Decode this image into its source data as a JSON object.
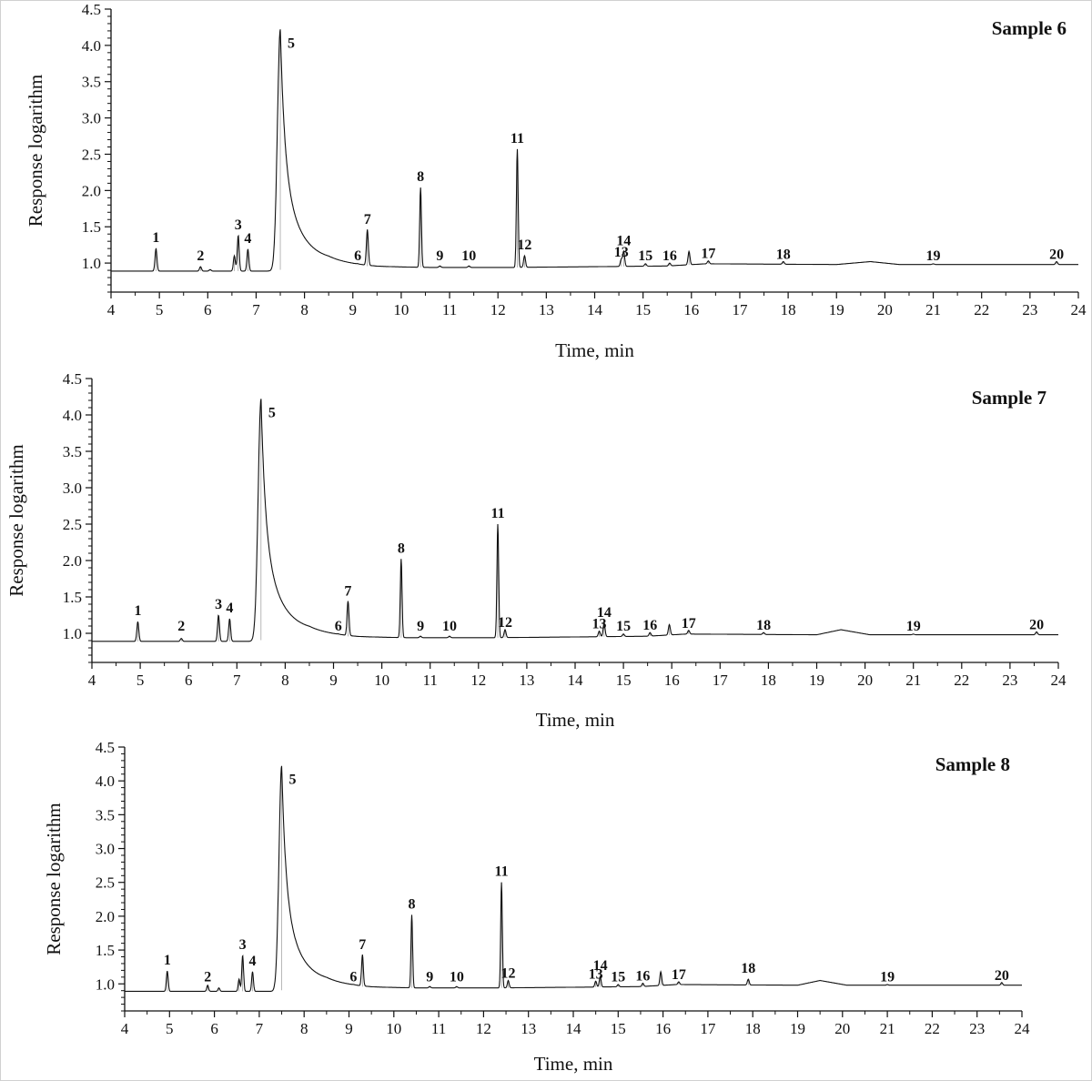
{
  "chart_data": [
    {
      "type": "line",
      "title": "Sample 6",
      "xlabel": "Time, min",
      "ylabel": "Response logarithm",
      "xlim": [
        4,
        24
      ],
      "ylim": [
        0.6,
        4.5
      ],
      "xticks": [
        "4",
        "5",
        "6",
        "7",
        "8",
        "9",
        "10",
        "11",
        "12",
        "13",
        "14",
        "15",
        "16",
        "17",
        "18",
        "19",
        "20",
        "21",
        "22",
        "23",
        "24"
      ],
      "yticks": [
        "1.0",
        "1.5",
        "2.0",
        "2.5",
        "3.0",
        "3.5",
        "4.0",
        "4.5"
      ],
      "baseline": [
        [
          4.0,
          0.89
        ],
        [
          7.3,
          0.89
        ],
        [
          8.5,
          0.99
        ],
        [
          9.5,
          0.95
        ],
        [
          10.5,
          0.94
        ],
        [
          12.3,
          0.94
        ],
        [
          14.0,
          0.95
        ],
        [
          15.5,
          0.96
        ],
        [
          16.3,
          0.99
        ],
        [
          19.0,
          0.98
        ],
        [
          19.7,
          1.02
        ],
        [
          20.3,
          0.98
        ],
        [
          24.0,
          0.98
        ]
      ],
      "peaks": [
        {
          "label": "1",
          "x": 4.93,
          "y": 1.2
        },
        {
          "label": "2",
          "x": 5.85,
          "y": 0.95
        },
        {
          "label": "",
          "x": 6.05,
          "y": 0.91
        },
        {
          "label": "",
          "x": 6.55,
          "y": 1.1
        },
        {
          "label": "3",
          "x": 6.63,
          "y": 1.38
        },
        {
          "label": "4",
          "x": 6.83,
          "y": 1.19
        },
        {
          "label": "5",
          "x": 7.5,
          "y": 4.22
        },
        {
          "label": "6",
          "x": 9.1,
          "y": 0.97
        },
        {
          "label": "7",
          "x": 9.3,
          "y": 1.45
        },
        {
          "label": "8",
          "x": 10.4,
          "y": 2.04
        },
        {
          "label": "9",
          "x": 10.8,
          "y": 0.96
        },
        {
          "label": "10",
          "x": 11.4,
          "y": 0.96
        },
        {
          "label": "11",
          "x": 12.4,
          "y": 2.57
        },
        {
          "label": "12",
          "x": 12.55,
          "y": 1.1
        },
        {
          "label": "13",
          "x": 14.55,
          "y": 1.05
        },
        {
          "label": "14",
          "x": 14.6,
          "y": 1.16
        },
        {
          "label": "15",
          "x": 15.05,
          "y": 0.99
        },
        {
          "label": "16",
          "x": 15.55,
          "y": 1.0
        },
        {
          "label": "",
          "x": 15.95,
          "y": 1.16
        },
        {
          "label": "17",
          "x": 16.35,
          "y": 1.03
        },
        {
          "label": "18",
          "x": 17.9,
          "y": 1.02
        },
        {
          "label": "19",
          "x": 21.0,
          "y": 0.99
        },
        {
          "label": "20",
          "x": 23.55,
          "y": 1.02
        }
      ]
    },
    {
      "type": "line",
      "title": "Sample 7",
      "xlabel": "Time, min",
      "ylabel": "Response logarithm",
      "xlim": [
        4,
        24
      ],
      "ylim": [
        0.6,
        4.5
      ],
      "xticks": [
        "4",
        "5",
        "6",
        "7",
        "8",
        "9",
        "10",
        "11",
        "12",
        "13",
        "14",
        "15",
        "16",
        "17",
        "18",
        "19",
        "20",
        "21",
        "22",
        "23",
        "24"
      ],
      "yticks": [
        "1.0",
        "1.5",
        "2.0",
        "2.5",
        "3.0",
        "3.5",
        "4.0",
        "4.5"
      ],
      "baseline": [
        [
          4.0,
          0.89
        ],
        [
          7.3,
          0.89
        ],
        [
          8.5,
          0.99
        ],
        [
          9.5,
          0.95
        ],
        [
          10.5,
          0.94
        ],
        [
          12.3,
          0.94
        ],
        [
          14.0,
          0.95
        ],
        [
          15.5,
          0.96
        ],
        [
          16.3,
          0.99
        ],
        [
          19.0,
          0.98
        ],
        [
          19.5,
          1.05
        ],
        [
          20.1,
          0.98
        ],
        [
          24.0,
          0.98
        ]
      ],
      "peaks": [
        {
          "label": "1",
          "x": 4.95,
          "y": 1.16
        },
        {
          "label": "2",
          "x": 5.85,
          "y": 0.93
        },
        {
          "label": "3",
          "x": 6.62,
          "y": 1.25
        },
        {
          "label": "4",
          "x": 6.85,
          "y": 1.2
        },
        {
          "label": "5",
          "x": 7.5,
          "y": 4.22
        },
        {
          "label": "6",
          "x": 9.1,
          "y": 0.97
        },
        {
          "label": "7",
          "x": 9.3,
          "y": 1.43
        },
        {
          "label": "8",
          "x": 10.4,
          "y": 2.02
        },
        {
          "label": "9",
          "x": 10.8,
          "y": 0.96
        },
        {
          "label": "10",
          "x": 11.4,
          "y": 0.96
        },
        {
          "label": "11",
          "x": 12.4,
          "y": 2.5
        },
        {
          "label": "12",
          "x": 12.55,
          "y": 1.05
        },
        {
          "label": "13",
          "x": 14.5,
          "y": 1.03
        },
        {
          "label": "14",
          "x": 14.6,
          "y": 1.14
        },
        {
          "label": "15",
          "x": 15.0,
          "y": 0.99
        },
        {
          "label": "16",
          "x": 15.55,
          "y": 1.01
        },
        {
          "label": "",
          "x": 15.95,
          "y": 1.12
        },
        {
          "label": "17",
          "x": 16.35,
          "y": 1.04
        },
        {
          "label": "18",
          "x": 17.9,
          "y": 1.01
        },
        {
          "label": "19",
          "x": 21.0,
          "y": 0.99
        },
        {
          "label": "20",
          "x": 23.55,
          "y": 1.02
        }
      ]
    },
    {
      "type": "line",
      "title": "Sample 8",
      "xlabel": "Time, min",
      "ylabel": "Response logarithm",
      "xlim": [
        4,
        24
      ],
      "ylim": [
        0.6,
        4.5
      ],
      "xticks": [
        "4",
        "5",
        "6",
        "7",
        "8",
        "9",
        "10",
        "11",
        "12",
        "13",
        "14",
        "15",
        "16",
        "17",
        "18",
        "19",
        "20",
        "21",
        "22",
        "23",
        "24"
      ],
      "yticks": [
        "1.0",
        "1.5",
        "2.0",
        "2.5",
        "3.0",
        "3.5",
        "4.0",
        "4.5"
      ],
      "baseline": [
        [
          4.0,
          0.89
        ],
        [
          7.3,
          0.89
        ],
        [
          8.5,
          0.99
        ],
        [
          9.5,
          0.95
        ],
        [
          10.5,
          0.94
        ],
        [
          12.3,
          0.94
        ],
        [
          14.0,
          0.95
        ],
        [
          15.5,
          0.96
        ],
        [
          16.3,
          0.99
        ],
        [
          19.0,
          0.98
        ],
        [
          19.5,
          1.05
        ],
        [
          20.1,
          0.98
        ],
        [
          24.0,
          0.98
        ]
      ],
      "peaks": [
        {
          "label": "1",
          "x": 4.95,
          "y": 1.19
        },
        {
          "label": "2",
          "x": 5.85,
          "y": 0.98
        },
        {
          "label": "",
          "x": 6.1,
          "y": 0.94
        },
        {
          "label": "",
          "x": 6.55,
          "y": 1.07
        },
        {
          "label": "3",
          "x": 6.63,
          "y": 1.42
        },
        {
          "label": "4",
          "x": 6.85,
          "y": 1.18
        },
        {
          "label": "5",
          "x": 7.5,
          "y": 4.22
        },
        {
          "label": "6",
          "x": 9.1,
          "y": 0.97
        },
        {
          "label": "7",
          "x": 9.3,
          "y": 1.42
        },
        {
          "label": "8",
          "x": 10.4,
          "y": 2.02
        },
        {
          "label": "9",
          "x": 10.8,
          "y": 0.96
        },
        {
          "label": "10",
          "x": 11.4,
          "y": 0.96
        },
        {
          "label": "11",
          "x": 12.4,
          "y": 2.5
        },
        {
          "label": "12",
          "x": 12.55,
          "y": 1.05
        },
        {
          "label": "13",
          "x": 14.5,
          "y": 1.04
        },
        {
          "label": "14",
          "x": 14.6,
          "y": 1.11
        },
        {
          "label": "15",
          "x": 15.0,
          "y": 0.99
        },
        {
          "label": "16",
          "x": 15.55,
          "y": 1.01
        },
        {
          "label": "",
          "x": 15.95,
          "y": 1.18
        },
        {
          "label": "17",
          "x": 16.35,
          "y": 1.03
        },
        {
          "label": "18",
          "x": 17.9,
          "y": 1.07
        },
        {
          "label": "19",
          "x": 21.0,
          "y": 0.99
        },
        {
          "label": "20",
          "x": 23.55,
          "y": 1.02
        }
      ]
    }
  ]
}
